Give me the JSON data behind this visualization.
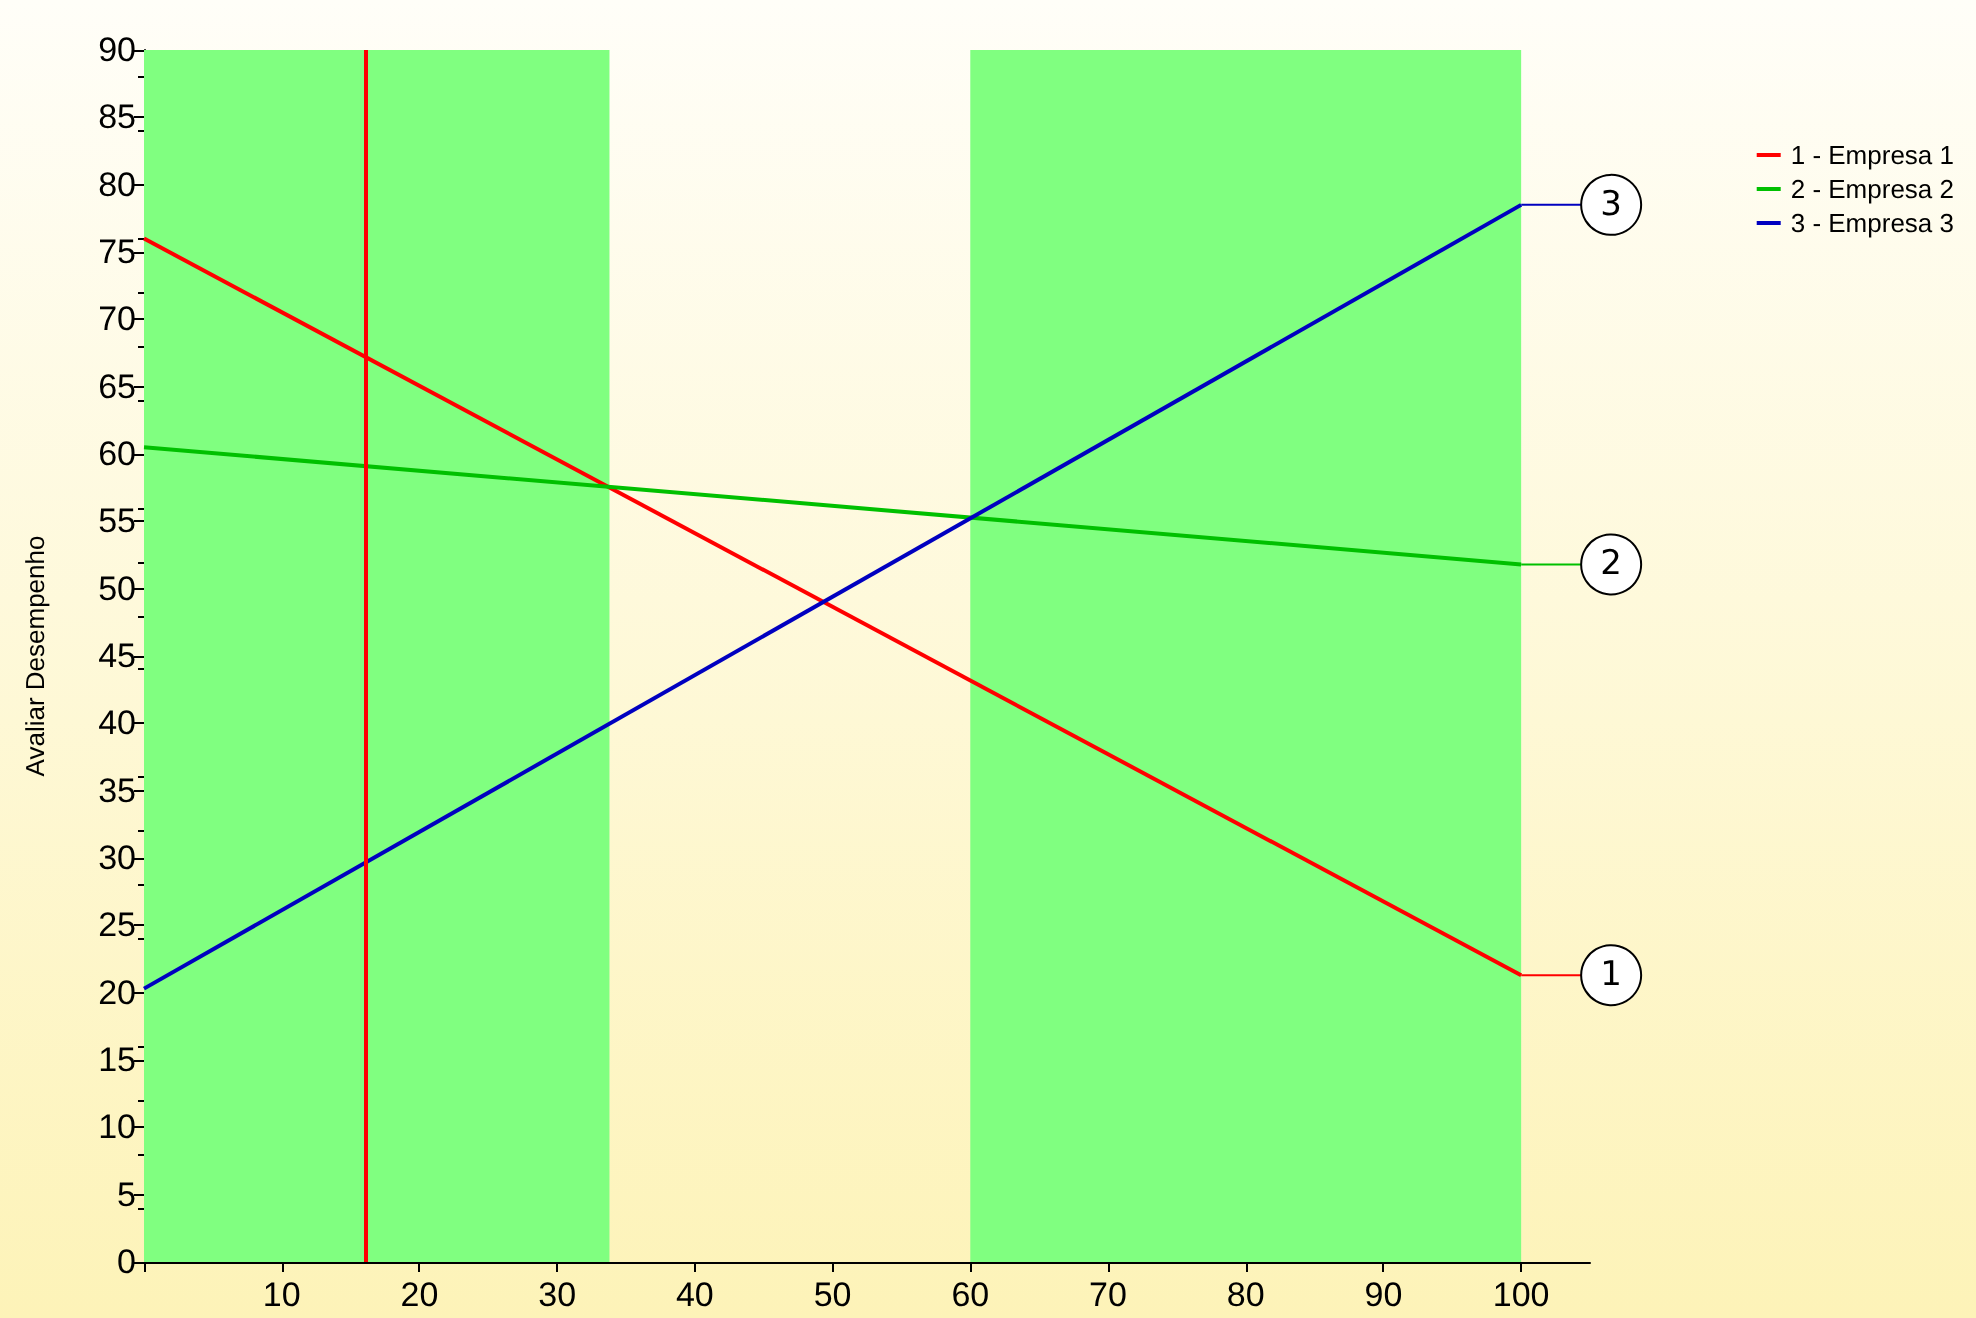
{
  "chart_data": {
    "type": "line",
    "ylabel": "Avaliar Desempenho",
    "x": [
      0,
      100
    ],
    "series": [
      {
        "name": "1 - Empresa 1",
        "color": "#ff0000",
        "values": [
          76,
          21.3
        ]
      },
      {
        "name": "2 - Empresa 2",
        "color": "#00c000",
        "values": [
          60.5,
          51.8
        ]
      },
      {
        "name": "3 - Empresa 3",
        "color": "#0000c0",
        "values": [
          20.3,
          78.5
        ]
      }
    ],
    "xlim": [
      0,
      105
    ],
    "xticks": [
      {
        "value": 0,
        "label": null
      },
      10,
      20,
      30,
      40,
      50,
      60,
      70,
      80,
      90,
      100
    ],
    "ylim": [
      0,
      90
    ],
    "yticks": [
      0,
      5,
      10,
      15,
      20,
      25,
      30,
      35,
      40,
      45,
      50,
      55,
      60,
      65,
      70,
      75,
      80,
      85,
      90
    ],
    "ref_lines": [
      {
        "axis": "x",
        "value": 16.1,
        "label": null,
        "color": "#ff0000"
      }
    ],
    "bands": [
      {
        "axis": "x",
        "from": 0,
        "to": 33.8,
        "label": null,
        "color": "#80ff80"
      },
      {
        "axis": "x",
        "from": 60,
        "to": 100,
        "label": null,
        "color": "#80ff80"
      }
    ],
    "annotations": [
      "1",
      "2",
      "3"
    ],
    "legend": "top right",
    "grid": false,
    "marker": "none",
    "line_style": "solid"
  }
}
